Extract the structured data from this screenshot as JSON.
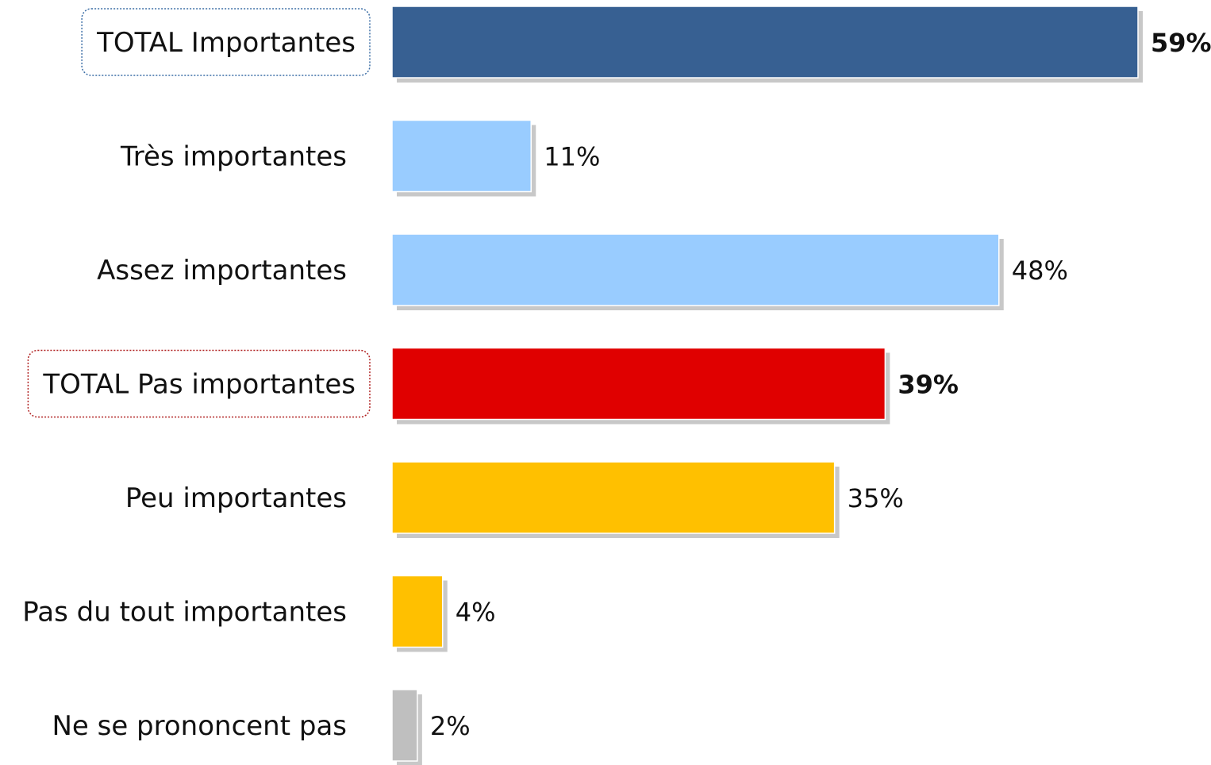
{
  "chart_data": {
    "type": "bar",
    "orientation": "horizontal",
    "categories": [
      "TOTAL Importantes",
      "Très importantes",
      "Assez importantes",
      "TOTAL Pas importantes",
      "Peu importantes",
      "Pas du tout importantes",
      "Ne se prononcent pas"
    ],
    "values": [
      59,
      11,
      48,
      39,
      35,
      4,
      2
    ],
    "value_labels": [
      "59%",
      "11%",
      "48%",
      "39%",
      "35%",
      "4%",
      "2%"
    ],
    "bold_values": [
      true,
      false,
      false,
      true,
      false,
      false,
      false
    ],
    "boxed_categories": [
      true,
      false,
      false,
      true,
      false,
      false,
      false
    ],
    "box_colors": [
      "#3c6ea6",
      "",
      "",
      "#b02020",
      "",
      "",
      ""
    ],
    "colors": [
      "#376092",
      "#99ccff",
      "#99ccff",
      "#e00000",
      "#ffc000",
      "#ffc000",
      "#bfbfbf"
    ],
    "unit": "%",
    "xlim": [
      0,
      59
    ],
    "grid": false,
    "legend": "none",
    "title": "",
    "xlabel": "",
    "ylabel": ""
  }
}
